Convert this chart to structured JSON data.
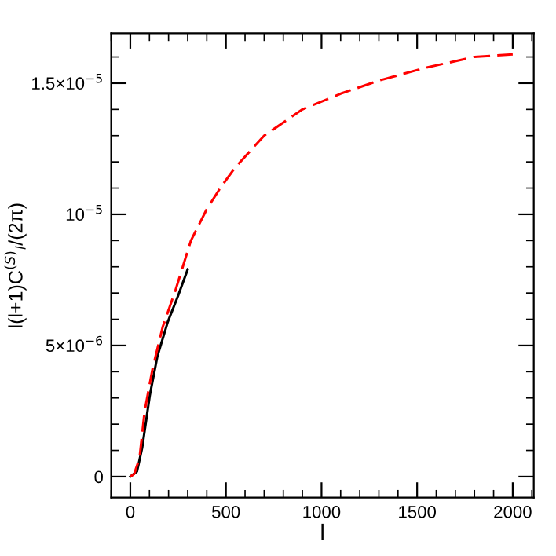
{
  "chart_data": {
    "type": "line",
    "xlabel": "l",
    "ylabel": "l(l+1)C$^{(S)}$$_{l}$/(2π)",
    "xlim": [
      -100,
      2110
    ],
    "ylim": [
      -8e-07,
      1.69e-05
    ],
    "xticks": [
      0,
      500,
      1000,
      1500,
      2000
    ],
    "yticks": [
      {
        "value": 0,
        "label": "0"
      },
      {
        "value": 5e-06,
        "label": "5×10$^{−6}$"
      },
      {
        "value": 1e-05,
        "label": "10$^{−5}$"
      },
      {
        "value": 1.5e-05,
        "label": "1.5×10$^{−5}$"
      }
    ],
    "grid": false,
    "legend": false,
    "series": [
      {
        "color": "#000000",
        "line_style": "solid",
        "x": [
          0,
          35,
          62,
          102,
          142,
          196,
          250,
          300
        ],
        "values": [
          0,
          2e-07,
          1.1e-06,
          3.1e-06,
          4.6e-06,
          5.9e-06,
          6.9e-06,
          7.9e-06
        ]
      },
      {
        "color": "#ff0000",
        "line_style": "dashed",
        "x": [
          0,
          20,
          48,
          75,
          116,
          169,
          236,
          317,
          400,
          470,
          550,
          700,
          900,
          1100,
          1300,
          1550,
          1800,
          2000
        ],
        "values": [
          0,
          1e-07,
          7e-07,
          2.5e-06,
          4.1e-06,
          5.7e-06,
          7.1e-06,
          9e-06,
          1.02e-05,
          1.1e-05,
          1.18e-05,
          1.3e-05,
          1.4e-05,
          1.46e-05,
          1.51e-05,
          1.56e-05,
          1.6e-05,
          1.61e-05
        ]
      }
    ]
  }
}
